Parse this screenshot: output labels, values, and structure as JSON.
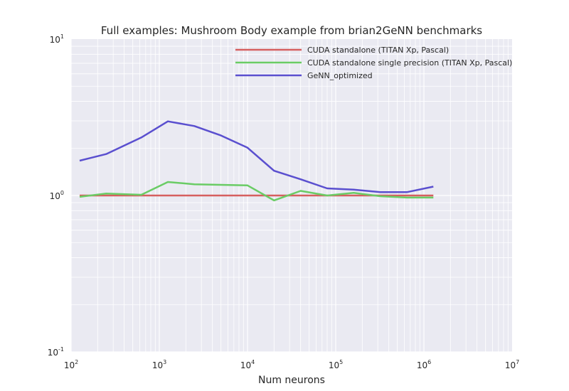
{
  "chart_data": {
    "type": "line",
    "title": "Full examples: Mushroom Body example from brian2GeNN benchmarks",
    "xlabel": "Num neurons",
    "ylabel": "",
    "xscale": "log",
    "yscale": "log",
    "xlim": [
      100,
      10000000
    ],
    "ylim": [
      0.1,
      10
    ],
    "grid": true,
    "legend_position": "top-right",
    "x_ticks": [
      {
        "base": "10",
        "exp": "2",
        "value": 100
      },
      {
        "base": "10",
        "exp": "3",
        "value": 1000
      },
      {
        "base": "10",
        "exp": "4",
        "value": 10000
      },
      {
        "base": "10",
        "exp": "5",
        "value": 100000
      },
      {
        "base": "10",
        "exp": "6",
        "value": 1000000
      },
      {
        "base": "10",
        "exp": "7",
        "value": 10000000
      }
    ],
    "y_ticks": [
      {
        "base": "10",
        "exp": "-1",
        "value": 0.1
      },
      {
        "base": "10",
        "exp": "0",
        "value": 1
      },
      {
        "base": "10",
        "exp": "1",
        "value": 10
      }
    ],
    "series": [
      {
        "name": "CUDA standalone (TITAN Xp, Pascal)",
        "color": "#d65f5f",
        "x": [
          125,
          250,
          625,
          1250,
          2500,
          5000,
          10000,
          20000,
          40000,
          80000,
          160000,
          320000,
          640000,
          1280000
        ],
        "y": [
          1.0,
          1.0,
          1.0,
          1.0,
          1.0,
          1.0,
          1.0,
          1.0,
          1.0,
          1.0,
          1.0,
          1.0,
          1.0,
          1.0
        ]
      },
      {
        "name": "CUDA standalone single precision (TITAN Xp, Pascal)",
        "color": "#6acc65",
        "x": [
          125,
          250,
          625,
          1250,
          2500,
          5000,
          10000,
          20000,
          40000,
          80000,
          160000,
          320000,
          640000,
          1280000
        ],
        "y": [
          0.98,
          1.03,
          1.01,
          1.22,
          1.18,
          1.17,
          1.16,
          0.93,
          1.07,
          1.0,
          1.04,
          0.99,
          0.97,
          0.97
        ]
      },
      {
        "name": "GeNN_optimized",
        "color": "#5a4fcf",
        "x": [
          125,
          250,
          625,
          1250,
          2500,
          5000,
          10000,
          20000,
          40000,
          80000,
          160000,
          320000,
          640000,
          1280000
        ],
        "y": [
          1.67,
          1.84,
          2.35,
          2.98,
          2.78,
          2.42,
          2.02,
          1.44,
          1.27,
          1.11,
          1.09,
          1.05,
          1.05,
          1.14
        ]
      }
    ]
  }
}
